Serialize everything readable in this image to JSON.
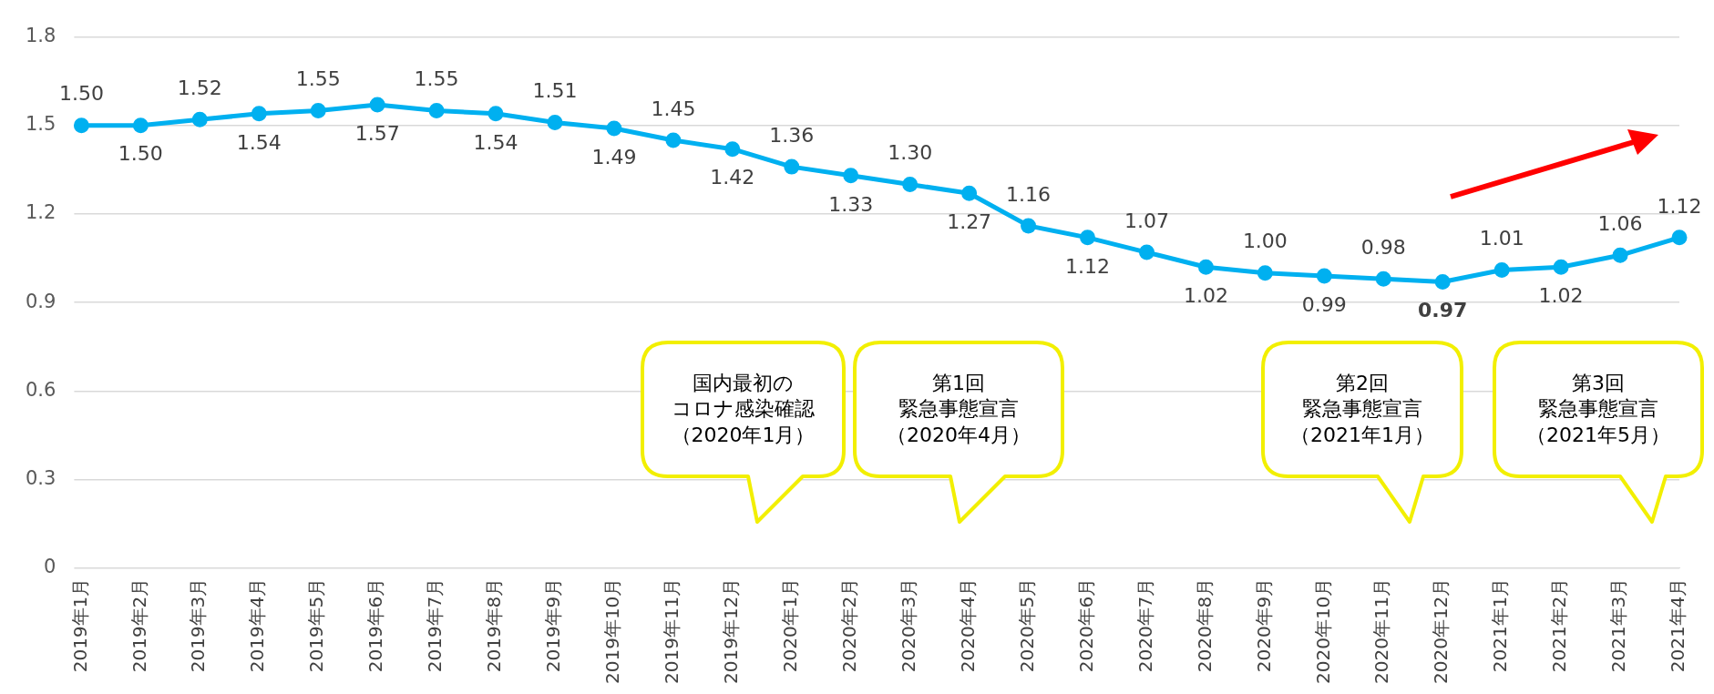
{
  "chart_data": {
    "type": "line",
    "categories": [
      "2019年1月",
      "2019年2月",
      "2019年3月",
      "2019年4月",
      "2019年5月",
      "2019年6月",
      "2019年7月",
      "2019年8月",
      "2019年9月",
      "2019年10月",
      "2019年11月",
      "2019年12月",
      "2020年1月",
      "2020年2月",
      "2020年3月",
      "2020年4月",
      "2020年5月",
      "2020年6月",
      "2020年7月",
      "2020年8月",
      "2020年9月",
      "2020年10月",
      "2020年11月",
      "2020年12月",
      "2021年1月",
      "2021年2月",
      "2021年3月",
      "2021年4月"
    ],
    "series": [
      {
        "color": "#00b0f0",
        "values": [
          1.5,
          1.5,
          1.52,
          1.54,
          1.55,
          1.57,
          1.55,
          1.54,
          1.51,
          1.49,
          1.45,
          1.42,
          1.36,
          1.33,
          1.3,
          1.27,
          1.16,
          1.12,
          1.07,
          1.02,
          1.0,
          0.99,
          0.98,
          0.97,
          1.01,
          1.02,
          1.06,
          1.12
        ],
        "value_labels": [
          "1.50",
          "1.50",
          "1.52",
          "1.54",
          "1.55",
          "1.57",
          "1.55",
          "1.54",
          "1.51",
          "1.49",
          "1.45",
          "1.42",
          "1.36",
          "1.33",
          "1.30",
          "1.27",
          "1.16",
          "1.12",
          "1.07",
          "1.02",
          "1.00",
          "0.99",
          "0.98",
          "0.97",
          "1.01",
          "1.02",
          "1.06",
          "1.12"
        ]
      }
    ],
    "ylim": [
      0,
      1.8
    ],
    "yticks": [
      0,
      0.3,
      0.6,
      0.9,
      1.2,
      1.5,
      1.8
    ],
    "grid": "y",
    "legend": false,
    "marker": "circle",
    "line_style": "solid",
    "annotations": [
      "国内最初の",
      "コロナ感染確認",
      "（2020年1月）",
      "第1回",
      "緊急事態宣言",
      "（2020年4月）",
      "第2回",
      "緊急事態宣言",
      "（2021年1月）",
      "第3回",
      "緊急事態宣言",
      "（2021年5月）"
    ]
  }
}
